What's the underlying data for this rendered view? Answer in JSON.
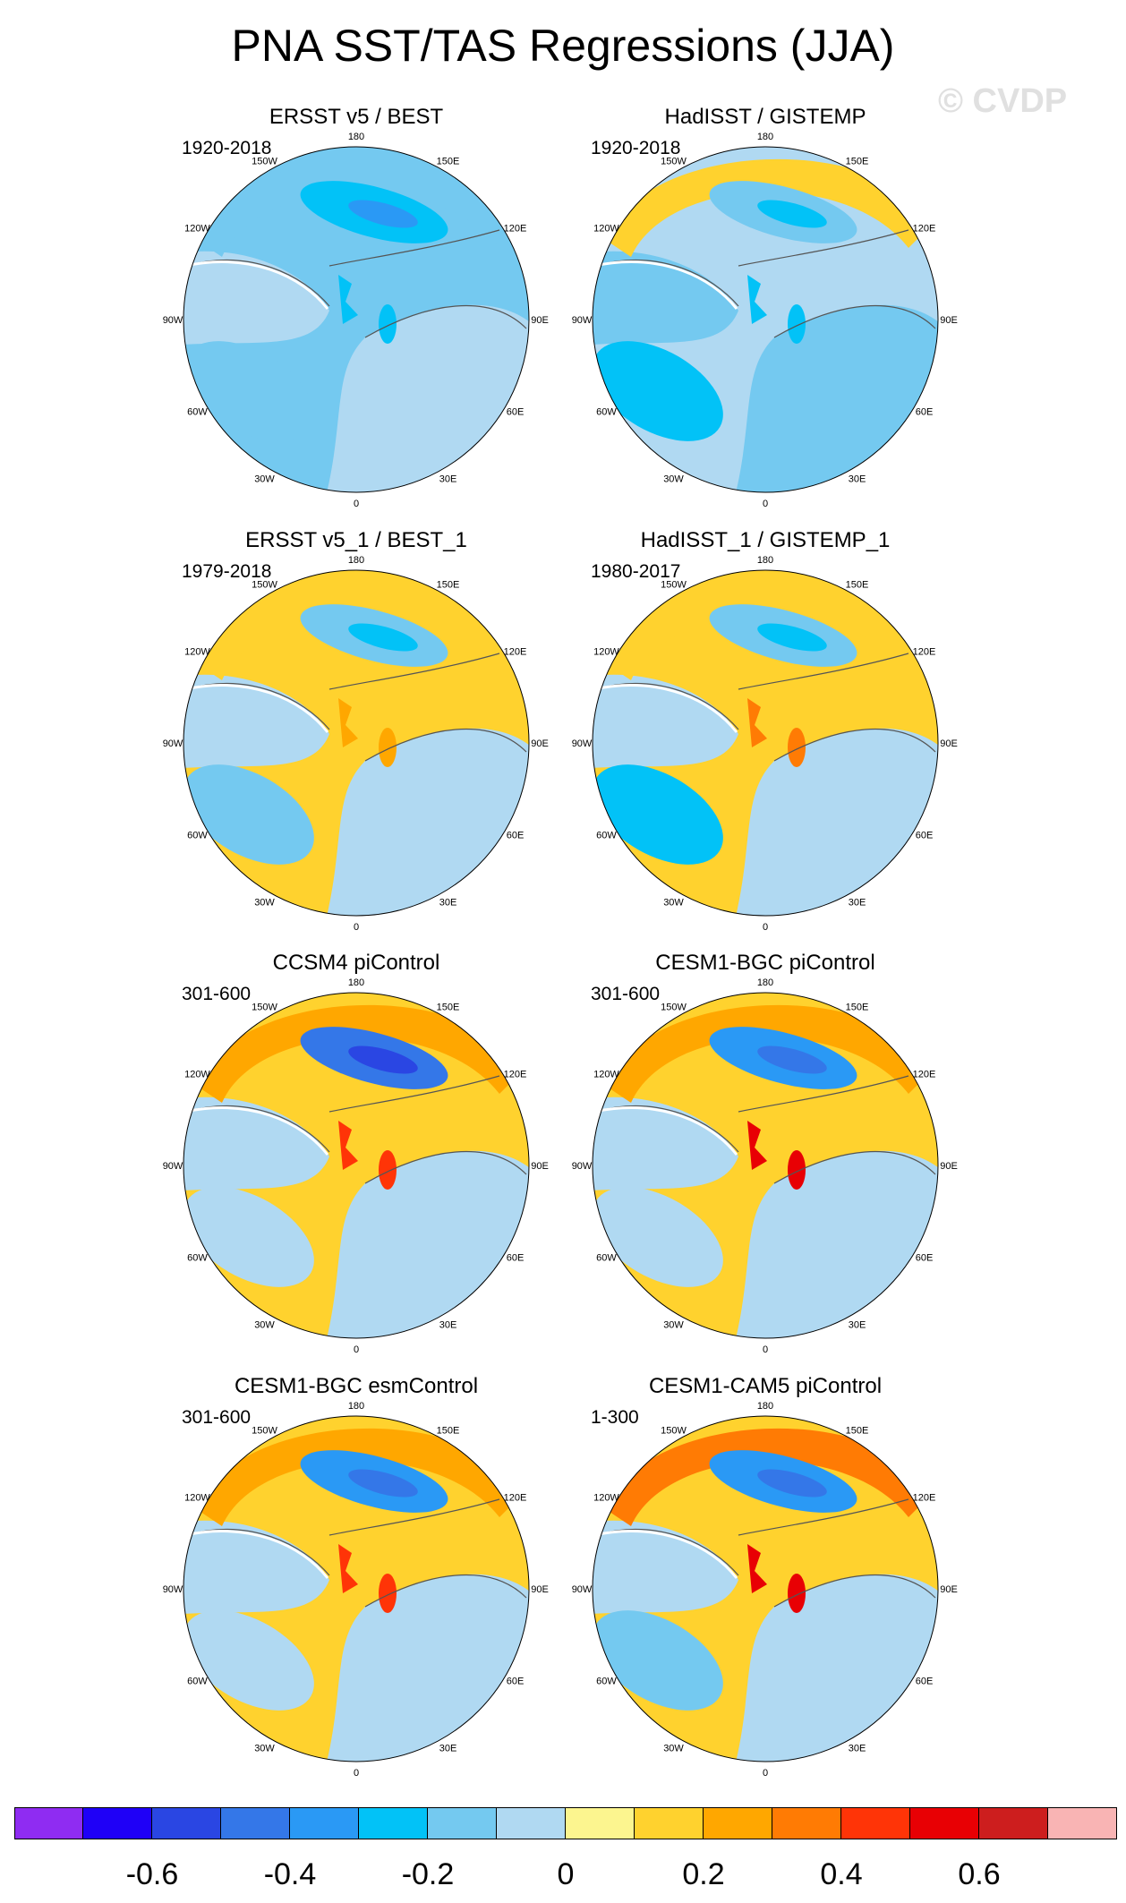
{
  "title": "PNA SST/TAS Regressions (JJA)",
  "watermark": "© CVDP",
  "panels": [
    {
      "title": "ERSST v5 / BEST",
      "period": "1920-2018",
      "pattern": {
        "pac_low": -0.3,
        "pac_high": -0.2,
        "sea": -0.15,
        "atl": -0.2,
        "land": -0.1,
        "arctic": -0.3,
        "speckle": 0
      }
    },
    {
      "title": "HadISST / GISTEMP",
      "period": "1920-2018",
      "pattern": {
        "pac_low": -0.2,
        "pac_high": 0.1,
        "sea": -0.1,
        "atl": -0.25,
        "land": -0.15,
        "arctic": -0.3,
        "speckle": 0
      }
    },
    {
      "title": "ERSST v5_1 / BEST_1",
      "period": "1979-2018",
      "pattern": {
        "pac_low": -0.2,
        "pac_high": 0.15,
        "sea": 0.1,
        "atl": -0.2,
        "land": -0.1,
        "arctic": 0.2,
        "speckle": 0
      }
    },
    {
      "title": "HadISST_1 / GISTEMP_1",
      "period": "1980-2017",
      "pattern": {
        "pac_low": -0.15,
        "pac_high": 0.15,
        "sea": 0.1,
        "atl": -0.25,
        "land": -0.1,
        "arctic": 0.3,
        "speckle": 0
      }
    },
    {
      "title": "CCSM4 piControl",
      "period": "301-600",
      "pattern": {
        "pac_low": -0.5,
        "pac_high": 0.2,
        "sea": 0.1,
        "atl": -0.1,
        "land": -0.1,
        "arctic": 0.4,
        "speckle": 0
      }
    },
    {
      "title": "CESM1-BGC piControl",
      "period": "301-600",
      "pattern": {
        "pac_low": -0.35,
        "pac_high": 0.2,
        "sea": 0.1,
        "atl": -0.1,
        "land": -0.1,
        "arctic": 0.5,
        "speckle": 0
      }
    },
    {
      "title": "CESM1-BGC esmControl",
      "period": "301-600",
      "pattern": {
        "pac_low": -0.35,
        "pac_high": 0.2,
        "sea": 0.1,
        "atl": -0.1,
        "land": -0.1,
        "arctic": 0.4,
        "speckle": 0
      }
    },
    {
      "title": "CESM1-CAM5 piControl",
      "period": "1-300",
      "pattern": {
        "pac_low": -0.4,
        "pac_high": 0.35,
        "sea": 0.1,
        "atl": -0.15,
        "land": -0.1,
        "arctic": 0.5,
        "speckle": 0
      }
    }
  ],
  "lon_labels": [
    "180",
    "150E",
    "120E",
    "90E",
    "60E",
    "30E",
    "0",
    "30W",
    "60W",
    "90W",
    "120W",
    "150W"
  ],
  "colorbar": {
    "colors": [
      "#8f2cf2",
      "#1f00f7",
      "#2a46e3",
      "#3477e8",
      "#2a99f5",
      "#02c2f7",
      "#74c9f0",
      "#b0d9f2",
      "#fcf58f",
      "#ffd22e",
      "#ffa700",
      "#ff7b04",
      "#ff3407",
      "#e80004",
      "#cd1e1e",
      "#f9b4b4"
    ],
    "tick_labels": [
      "-0.6",
      "-0.4",
      "-0.2",
      "0",
      "0.2",
      "0.4",
      "0.6"
    ],
    "tick_values": [
      -0.6,
      -0.4,
      -0.2,
      0,
      0.2,
      0.4,
      0.6
    ],
    "min": -0.8,
    "max": 0.8
  }
}
